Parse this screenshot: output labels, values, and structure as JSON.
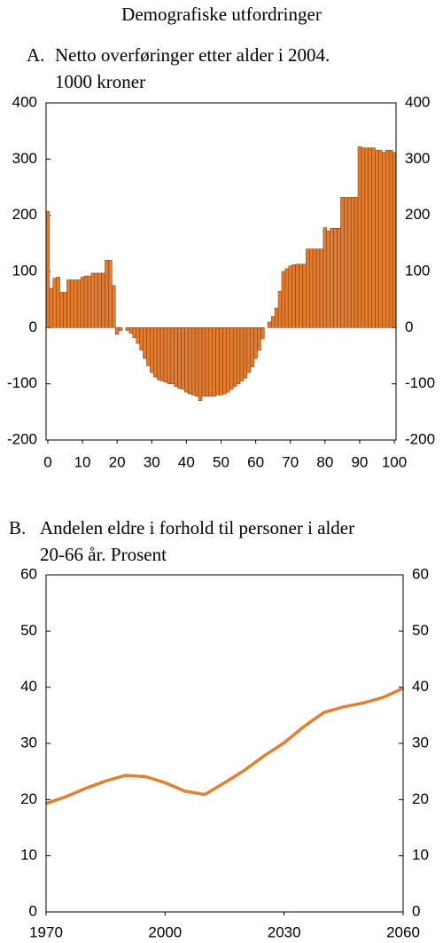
{
  "page_title": "Demografiske utfordringer",
  "chart_data": [
    {
      "type": "bar",
      "panel": "A.",
      "title": [
        "Netto overføringer etter alder i 2004.",
        "1000 kroner"
      ],
      "x": [
        0,
        1,
        2,
        3,
        4,
        5,
        6,
        7,
        8,
        9,
        10,
        11,
        12,
        13,
        14,
        15,
        16,
        17,
        18,
        19,
        20,
        21,
        22,
        23,
        24,
        25,
        26,
        27,
        28,
        29,
        30,
        31,
        32,
        33,
        34,
        35,
        36,
        37,
        38,
        39,
        40,
        41,
        42,
        43,
        44,
        45,
        46,
        47,
        48,
        49,
        50,
        51,
        52,
        53,
        54,
        55,
        56,
        57,
        58,
        59,
        60,
        61,
        62,
        63,
        64,
        65,
        66,
        67,
        68,
        69,
        70,
        71,
        72,
        73,
        74,
        75,
        76,
        77,
        78,
        79,
        80,
        81,
        82,
        83,
        84,
        85,
        86,
        87,
        88,
        89,
        90,
        91,
        92,
        93,
        94,
        95,
        96,
        97,
        98,
        99,
        100
      ],
      "values": [
        207,
        70,
        88,
        90,
        63,
        63,
        85,
        85,
        85,
        85,
        90,
        92,
        92,
        97,
        97,
        97,
        97,
        120,
        120,
        75,
        -12,
        -5,
        0,
        -5,
        -10,
        -18,
        -28,
        -40,
        -55,
        -68,
        -80,
        -88,
        -93,
        -95,
        -97,
        -100,
        -100,
        -105,
        -108,
        -110,
        -115,
        -118,
        -120,
        -122,
        -130,
        -122,
        -122,
        -122,
        -122,
        -120,
        -120,
        -118,
        -115,
        -110,
        -105,
        -100,
        -95,
        -90,
        -80,
        -70,
        -55,
        -40,
        -20,
        0,
        10,
        20,
        35,
        65,
        100,
        105,
        110,
        112,
        113,
        113,
        113,
        140,
        140,
        140,
        140,
        140,
        178,
        172,
        177,
        177,
        177,
        232,
        232,
        232,
        232,
        232,
        322,
        320,
        320,
        320,
        320,
        316,
        316,
        312,
        316,
        316,
        312
      ],
      "color": "#e07b30",
      "xlim": [
        -0.5,
        100.5
      ],
      "xticks": [
        0,
        10,
        20,
        30,
        40,
        50,
        60,
        70,
        80,
        90,
        100
      ],
      "ylim": [
        -200,
        400
      ],
      "yticks": [
        -200,
        -100,
        0,
        100,
        200,
        300,
        400
      ]
    },
    {
      "type": "line",
      "panel": "B.",
      "title": [
        "Andelen eldre i forhold til personer i alder",
        "20-66 år. Prosent"
      ],
      "x": [
        1970,
        1975,
        1980,
        1985,
        1990,
        1995,
        2000,
        2005,
        2010,
        2015,
        2020,
        2025,
        2030,
        2035,
        2040,
        2045,
        2050,
        2055,
        2060
      ],
      "values": [
        19.3,
        20.5,
        22.0,
        23.3,
        24.3,
        24.1,
        23.0,
        21.5,
        20.9,
        23.0,
        25.2,
        27.8,
        30.1,
        33.0,
        35.5,
        36.5,
        37.2,
        38.2,
        39.8
      ],
      "color": "#e08030",
      "xlim": [
        1970,
        2060
      ],
      "xticks": [
        1970,
        2000,
        2030,
        2060
      ],
      "ylim": [
        0,
        60
      ],
      "yticks": [
        0,
        10,
        20,
        30,
        40,
        50,
        60
      ]
    }
  ]
}
